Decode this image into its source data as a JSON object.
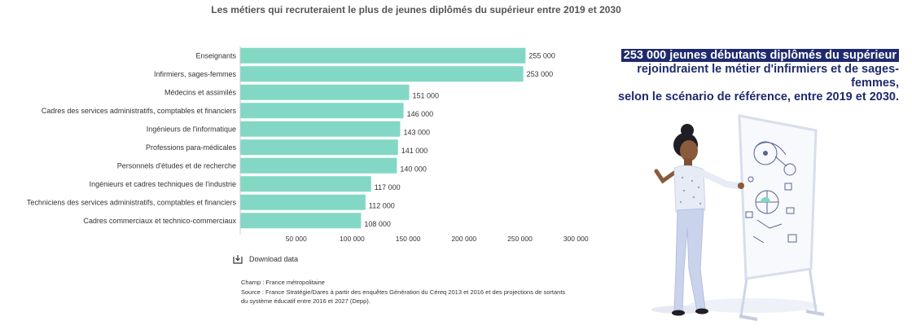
{
  "chart_data": {
    "type": "bar",
    "orientation": "horizontal",
    "title": "Les métiers qui recruteraient le plus de jeunes diplômés du supérieur entre 2019 et 2030",
    "categories": [
      "Enseignants",
      "Infirmiers, sages-femmes",
      "Médecins et assimilés",
      "Cadres des services administratifs, comptables et financiers",
      "Ingénieurs de l'informatique",
      "Professions para-médicales",
      "Personnels d'études et de recherche",
      "Ingénieurs et cadres techniques de l'industrie",
      "Techniciens des services administratifs, comptables et financiers",
      "Cadres commerciaux et technico-commerciaux"
    ],
    "values": [
      255000,
      253000,
      151000,
      146000,
      143000,
      141000,
      140000,
      117000,
      112000,
      108000
    ],
    "value_labels": [
      "255 000",
      "253 000",
      "151 000",
      "146 000",
      "143 000",
      "141 000",
      "140 000",
      "117 000",
      "112 000",
      "108 000"
    ],
    "xlim": [
      0,
      300000
    ],
    "xticks": [
      50000,
      100000,
      150000,
      200000,
      250000,
      300000
    ],
    "xtick_labels": [
      "50 000",
      "100 000",
      "150 000",
      "200 000",
      "250 000",
      "300 000"
    ],
    "bar_color": "#82d8c5",
    "grid": false,
    "legend": "none"
  },
  "download_label": "Download data",
  "download_icon": "download-icon",
  "notes": {
    "champ": "Champ : France métropolitaine",
    "source_line1": "Source : France Stratégie/Dares à partir des enquêtes Génération du Céreq 2013 et 2016 et des projections de sortants",
    "source_line2": "du système éducatif entre 2016 et 2027 (Depp)."
  },
  "callout": {
    "highlight": "253 000 jeunes débutants diplômés du supérieur",
    "line2": "rejoindraient le métier d'infirmiers et de sages-femmes,",
    "line3": "selon le scénario de référence, entre 2019 et 2030."
  },
  "colors": {
    "accent": "#1f2a6e",
    "bar": "#82d8c5"
  }
}
